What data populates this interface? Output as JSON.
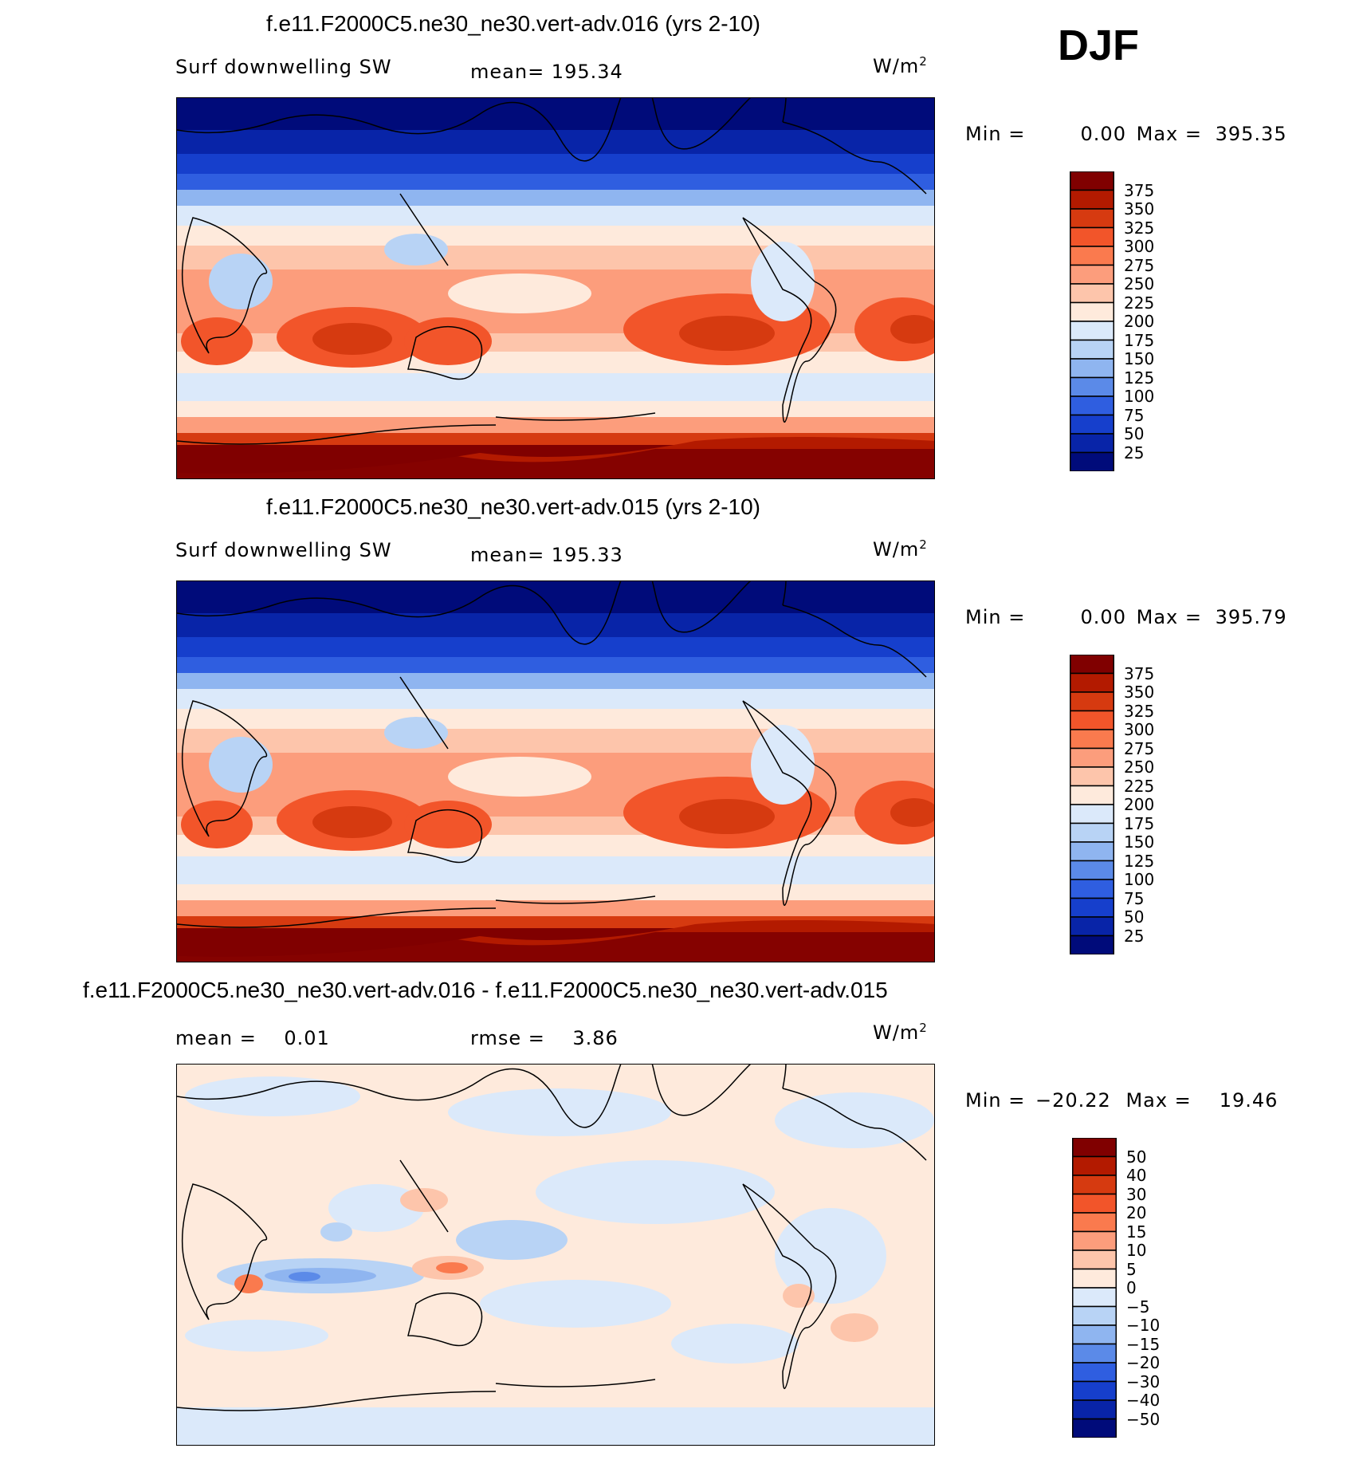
{
  "season": "DJF",
  "panels": [
    {
      "title": "f.e11.F2000C5.ne30_ne30.vert-adv.016 (yrs 2-10)",
      "left_label": "Surf downwelling SW",
      "center_label": "mean= 195.34",
      "units_base": "W/m",
      "units_exp": "2",
      "min_label": "Min =",
      "min_value": "0.00",
      "max_label": "Max =",
      "max_value": "395.35",
      "colorbar_levels": [
        "375",
        "350",
        "325",
        "300",
        "275",
        "250",
        "225",
        "200",
        "175",
        "150",
        "125",
        "100",
        "75",
        "50",
        "25"
      ],
      "field": {
        "variable": "Surf downwelling SW",
        "mean": 195.34,
        "min": 0.0,
        "max": 395.35
      }
    },
    {
      "title": "f.e11.F2000C5.ne30_ne30.vert-adv.015 (yrs 2-10)",
      "left_label": "Surf downwelling SW",
      "center_label": "mean= 195.33",
      "units_base": "W/m",
      "units_exp": "2",
      "min_label": "Min =",
      "min_value": "0.00",
      "max_label": "Max =",
      "max_value": "395.79",
      "colorbar_levels": [
        "375",
        "350",
        "325",
        "300",
        "275",
        "250",
        "225",
        "200",
        "175",
        "150",
        "125",
        "100",
        "75",
        "50",
        "25"
      ],
      "field": {
        "variable": "Surf downwelling SW",
        "mean": 195.33,
        "min": 0.0,
        "max": 395.79
      }
    },
    {
      "title": "f.e11.F2000C5.ne30_ne30.vert-adv.016 - f.e11.F2000C5.ne30_ne30.vert-adv.015",
      "left_label": "mean =    0.01",
      "center_label": "rmse =    3.86",
      "units_base": "W/m",
      "units_exp": "2",
      "min_label": "Min =",
      "min_value": "−20.22",
      "max_label": "Max =",
      "max_value": "19.46",
      "colorbar_levels": [
        "50",
        "40",
        "30",
        "20",
        "15",
        "10",
        "5",
        "0",
        "−5",
        "−10",
        "−15",
        "−20",
        "−30",
        "−40",
        "−50"
      ],
      "field": {
        "variable": "difference",
        "mean": 0.01,
        "rmse": 3.86,
        "min": -20.22,
        "max": 19.46
      }
    }
  ],
  "colors": {
    "abs_scale": [
      "#800000",
      "#b31a00",
      "#d63a10",
      "#f2552a",
      "#fa7a4e",
      "#fc9d7c",
      "#fdc5ab",
      "#feeadc",
      "#dbe9fa",
      "#b8d3f5",
      "#8fb5f0",
      "#5b8ae8",
      "#2f5ee0",
      "#163fcc",
      "#0824a8",
      "#000b7a"
    ],
    "diff_scale": [
      "#800000",
      "#b31a00",
      "#d63a10",
      "#f2552a",
      "#fa7a4e",
      "#fc9d7c",
      "#fdc5ab",
      "#feeadc",
      "#dbe9fa",
      "#b8d3f5",
      "#8fb5f0",
      "#5b8ae8",
      "#2f5ee0",
      "#163fcc",
      "#0824a8",
      "#000b7a"
    ]
  }
}
